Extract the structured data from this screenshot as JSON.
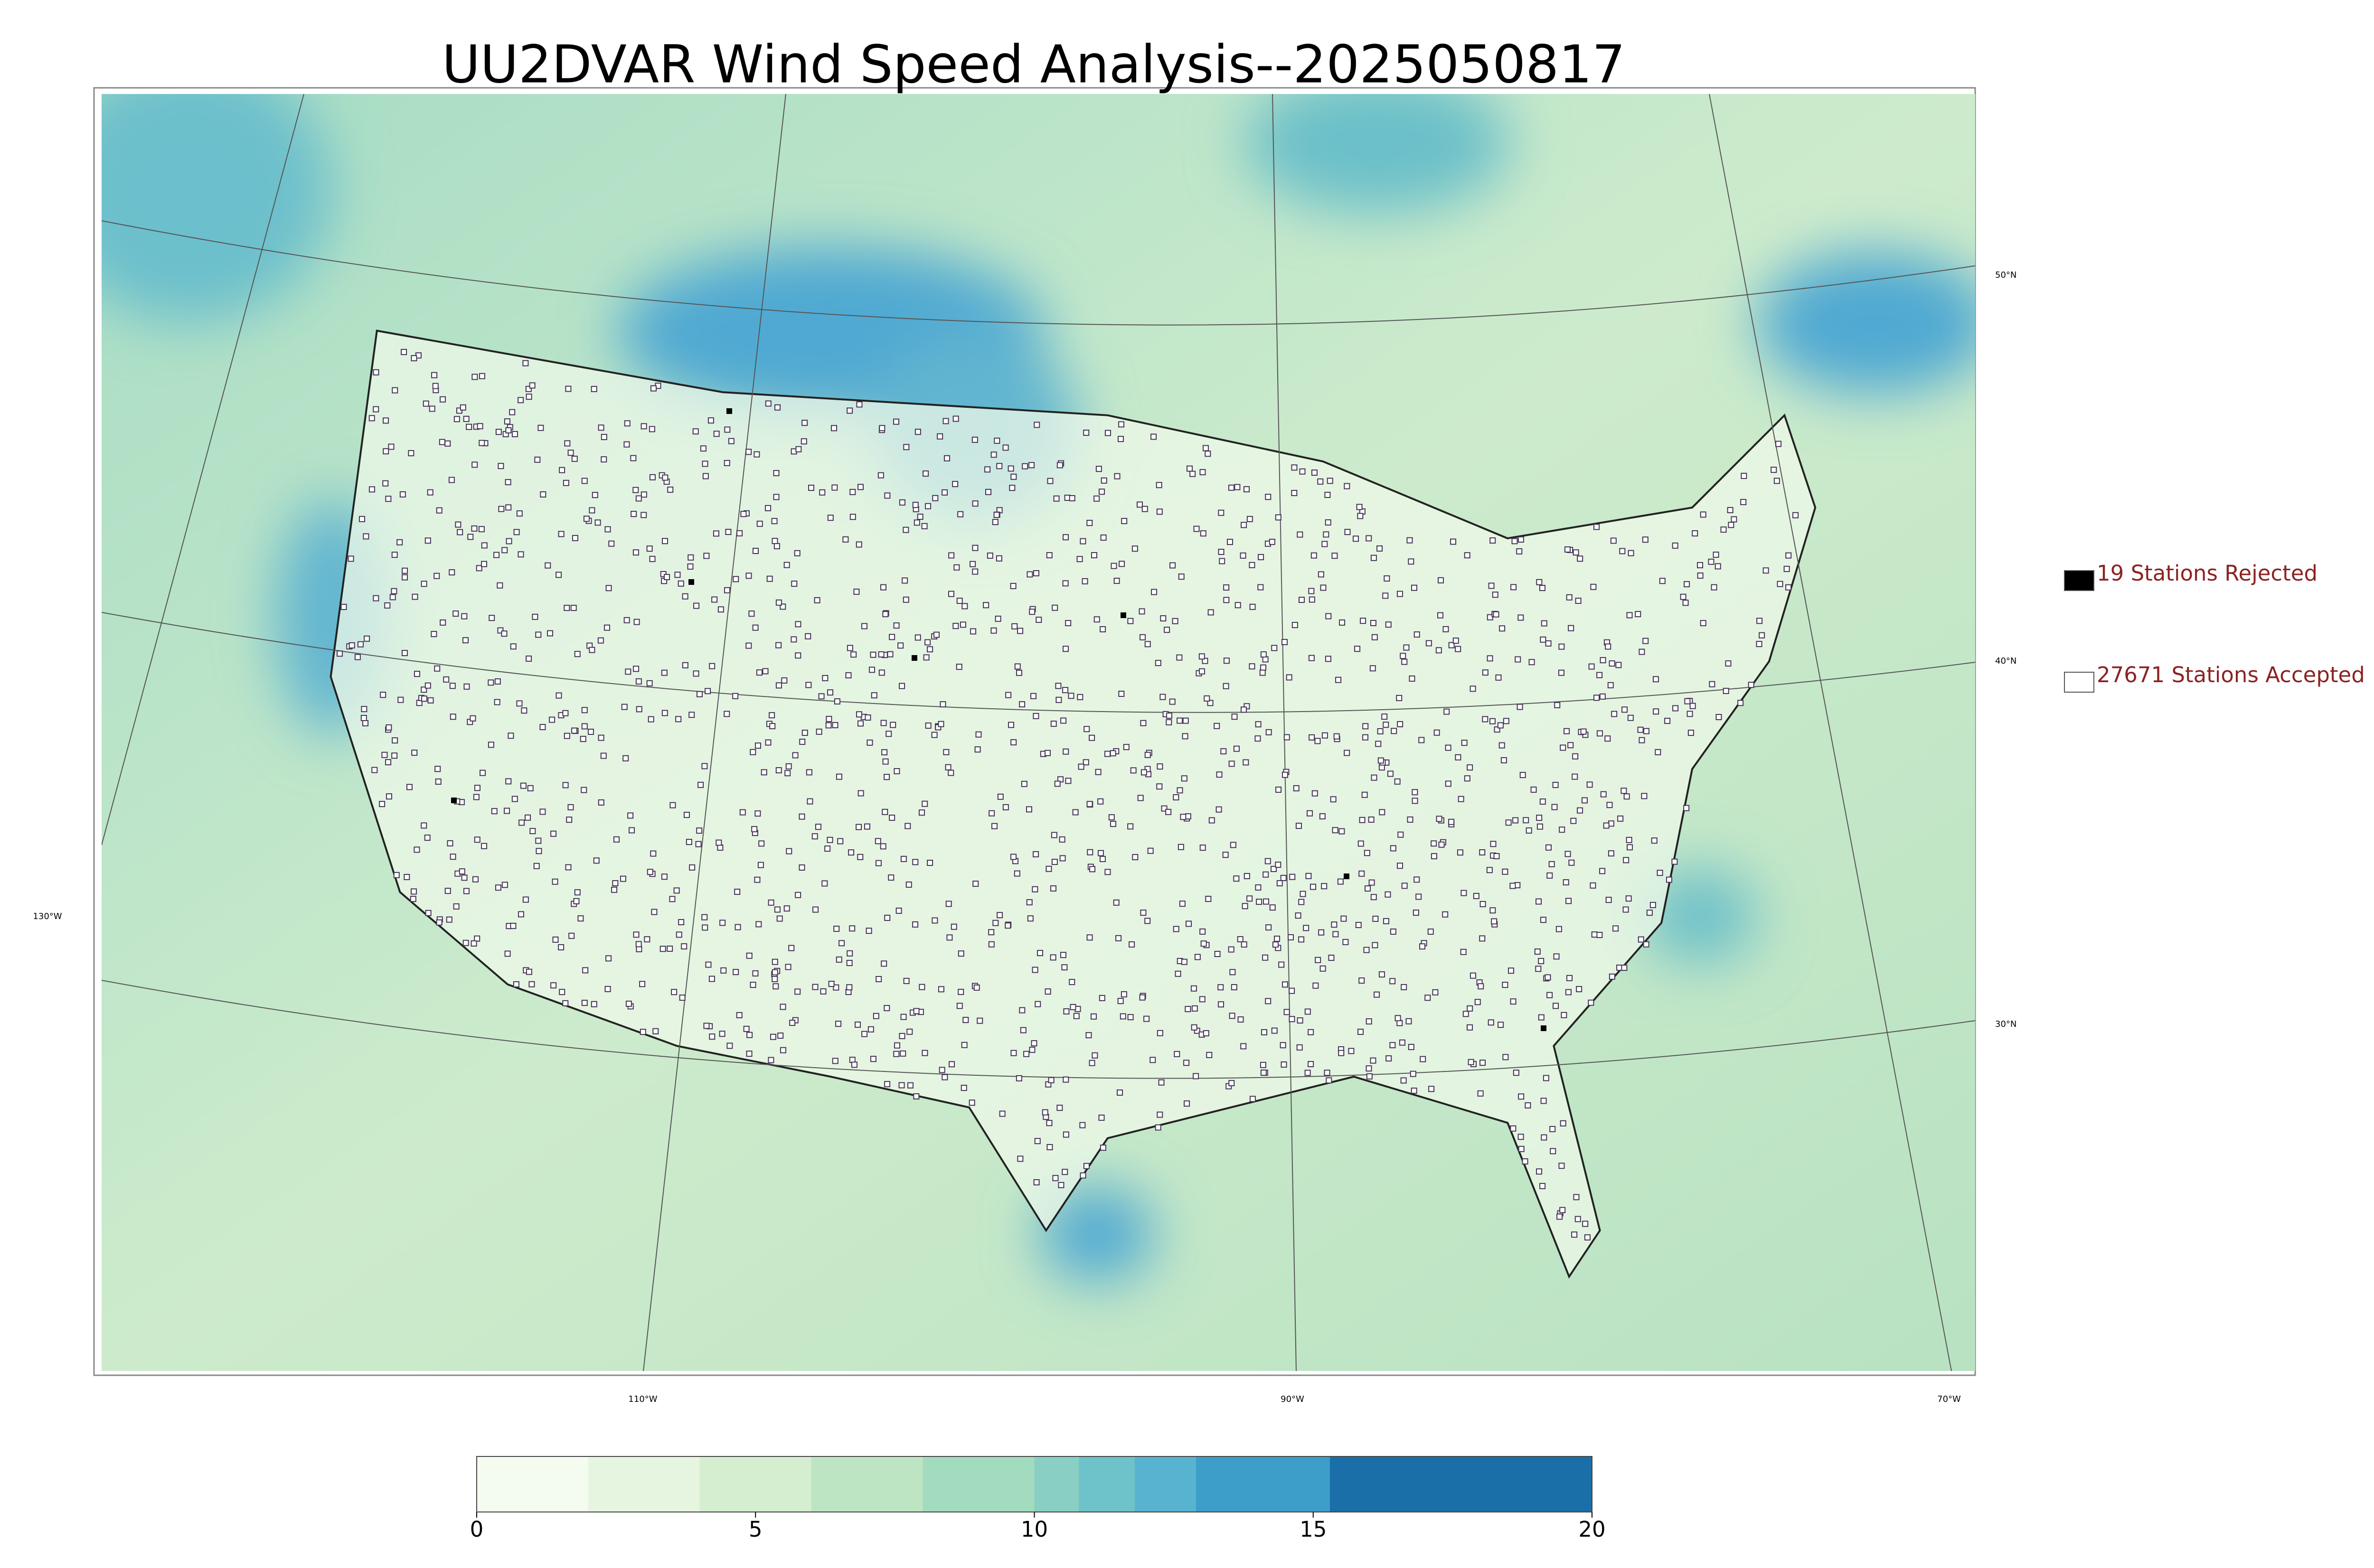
{
  "chart_data": {
    "type": "map",
    "title": "UU2DVAR Wind Speed Analysis--2025050817",
    "legend": [
      {
        "label": "19 Stations Rejected",
        "color": "#000000"
      },
      {
        "label": "27671 Stations Accepted",
        "color": "#ffffff"
      }
    ],
    "latitude_labels": [
      "50°N",
      "40°N",
      "30°N"
    ],
    "longitude_labels": [
      "130°W",
      "110°W",
      "90°W",
      "70°W"
    ],
    "colorbar": {
      "xlim": [
        0,
        20
      ],
      "xticks": [
        0,
        5,
        10,
        15,
        20
      ],
      "levels": [
        0,
        2,
        4,
        6,
        8,
        10,
        10.8,
        11.8,
        12.9,
        15.3,
        20
      ],
      "colors": [
        "#f4fbef",
        "#e6f5e0",
        "#d4eecf",
        "#bde5c3",
        "#a3dbbf",
        "#89cfc3",
        "#6ec2c9",
        "#58b3d1",
        "#3c9ec9",
        "#1a6fa9"
      ]
    }
  }
}
